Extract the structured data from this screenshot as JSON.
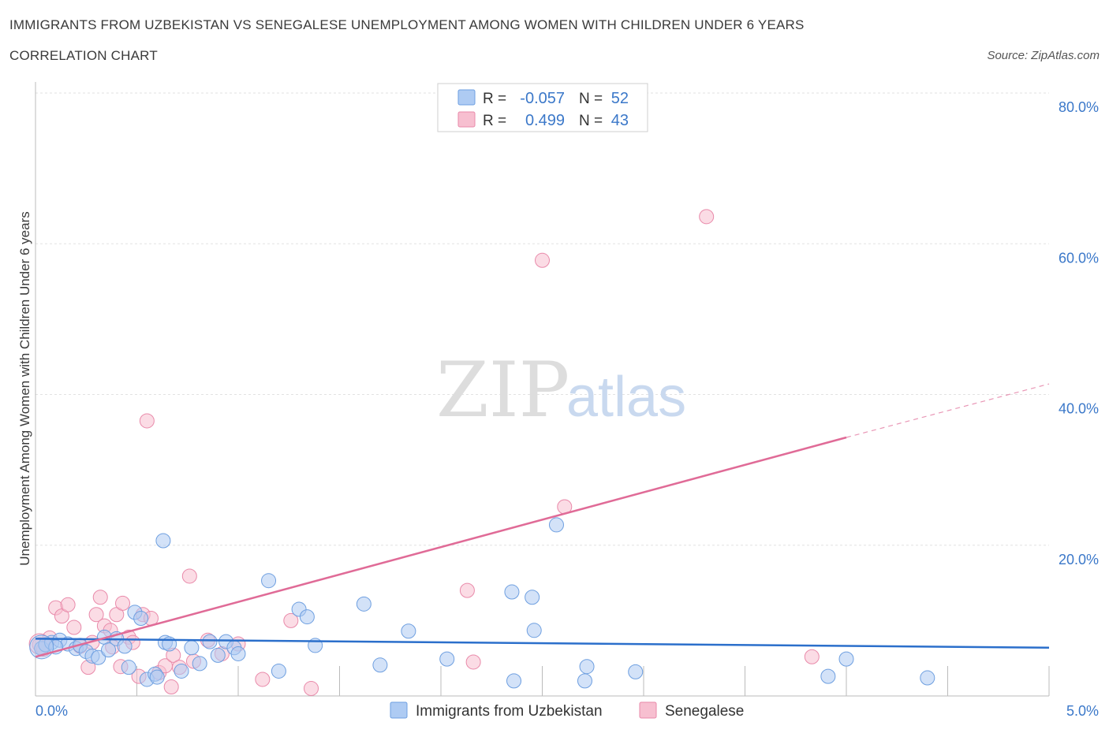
{
  "title": "IMMIGRANTS FROM UZBEKISTAN VS SENEGALESE UNEMPLOYMENT AMONG WOMEN WITH CHILDREN UNDER 6 YEARS",
  "subtitle": "CORRELATION CHART",
  "source": "Source: ZipAtlas.com",
  "watermark": {
    "zip": "ZIP",
    "atlas": "atlas"
  },
  "legend": {
    "r_label": "R =",
    "n_label": "N =",
    "rows": [
      {
        "r": "-0.057",
        "n": "52"
      },
      {
        "r": "0.499",
        "n": "43"
      }
    ]
  },
  "colors": {
    "blue_fill": "#aecbf3",
    "blue_stroke": "#6e9fe0",
    "blue_line": "#2b6fcb",
    "pink_fill": "#f7bfd0",
    "pink_stroke": "#e98aaa",
    "pink_line": "#e06b97",
    "tick_label": "#3b78c9"
  },
  "chart_data": {
    "type": "scatter",
    "title": "IMMIGRANTS FROM UZBEKISTAN VS SENEGALESE UNEMPLOYMENT AMONG WOMEN WITH CHILDREN UNDER 6 YEARS",
    "xlabel": "",
    "ylabel": "Unemployment Among Women with Children Under 6 years",
    "xlim": [
      0,
      5
    ],
    "ylim": [
      0,
      80
    ],
    "x_ticks": [
      "0.0%",
      "5.0%"
    ],
    "y_ticks": [
      {
        "value": 20,
        "label": "20.0%"
      },
      {
        "value": 40,
        "label": "40.0%"
      },
      {
        "value": 60,
        "label": "60.0%"
      },
      {
        "value": 80,
        "label": "80.0%"
      }
    ],
    "series": [
      {
        "name": "Immigrants from Uzbekistan",
        "color": "blue",
        "R": -0.057,
        "N": 52,
        "trend": {
          "x0": 0.0,
          "y0": 7.6,
          "x1": 5.0,
          "y1": 6.4
        },
        "points": [
          [
            0.03,
            6.3
          ],
          [
            0.05,
            6.8
          ],
          [
            0.08,
            7.1
          ],
          [
            0.12,
            7.4
          ],
          [
            0.16,
            6.9
          ],
          [
            0.2,
            6.3
          ],
          [
            0.22,
            6.7
          ],
          [
            0.25,
            5.9
          ],
          [
            0.28,
            5.3
          ],
          [
            0.31,
            5.1
          ],
          [
            0.34,
            7.8
          ],
          [
            0.36,
            6.1
          ],
          [
            0.4,
            7.6
          ],
          [
            0.44,
            6.6
          ],
          [
            0.46,
            3.8
          ],
          [
            0.49,
            11.1
          ],
          [
            0.52,
            10.3
          ],
          [
            0.55,
            2.2
          ],
          [
            0.59,
            2.9
          ],
          [
            0.63,
            20.6
          ],
          [
            0.64,
            7.1
          ],
          [
            0.66,
            6.9
          ],
          [
            0.72,
            3.3
          ],
          [
            0.77,
            6.4
          ],
          [
            0.81,
            4.3
          ],
          [
            0.86,
            7.2
          ],
          [
            0.9,
            5.4
          ],
          [
            0.94,
            7.2
          ],
          [
            0.98,
            6.4
          ],
          [
            1.0,
            5.6
          ],
          [
            1.15,
            15.3
          ],
          [
            1.2,
            3.3
          ],
          [
            1.3,
            11.5
          ],
          [
            1.34,
            10.5
          ],
          [
            1.38,
            6.7
          ],
          [
            1.62,
            12.2
          ],
          [
            1.7,
            4.1
          ],
          [
            1.84,
            8.6
          ],
          [
            2.03,
            4.9
          ],
          [
            2.35,
            13.8
          ],
          [
            2.36,
            2.0
          ],
          [
            2.45,
            13.1
          ],
          [
            2.46,
            8.7
          ],
          [
            2.57,
            22.7
          ],
          [
            2.71,
            2.0
          ],
          [
            2.72,
            3.9
          ],
          [
            2.96,
            3.2
          ],
          [
            3.91,
            2.6
          ],
          [
            4.0,
            4.9
          ],
          [
            4.4,
            2.4
          ],
          [
            0.6,
            2.5
          ],
          [
            0.1,
            6.5
          ]
        ]
      },
      {
        "name": "Senegalese",
        "color": "pink",
        "R": 0.499,
        "N": 43,
        "trend": {
          "x0": 0.0,
          "y0": 5.2,
          "x1": 4.0,
          "y1": 34.3
        },
        "trend_dashed": {
          "x0": 4.0,
          "y0": 34.3,
          "x1": 5.0,
          "y1": 41.4
        },
        "points": [
          [
            0.02,
            6.8
          ],
          [
            0.04,
            6.2
          ],
          [
            0.07,
            7.7
          ],
          [
            0.1,
            11.7
          ],
          [
            0.13,
            10.6
          ],
          [
            0.16,
            12.1
          ],
          [
            0.19,
            9.1
          ],
          [
            0.22,
            6.6
          ],
          [
            0.26,
            3.8
          ],
          [
            0.28,
            7.1
          ],
          [
            0.3,
            10.8
          ],
          [
            0.32,
            13.1
          ],
          [
            0.34,
            9.3
          ],
          [
            0.37,
            8.7
          ],
          [
            0.38,
            6.5
          ],
          [
            0.4,
            10.8
          ],
          [
            0.42,
            3.9
          ],
          [
            0.43,
            12.3
          ],
          [
            0.46,
            7.8
          ],
          [
            0.48,
            7.1
          ],
          [
            0.51,
            2.6
          ],
          [
            0.53,
            10.8
          ],
          [
            0.55,
            36.5
          ],
          [
            0.57,
            10.3
          ],
          [
            0.61,
            3.1
          ],
          [
            0.64,
            4.0
          ],
          [
            0.67,
            1.2
          ],
          [
            0.68,
            5.4
          ],
          [
            0.71,
            3.8
          ],
          [
            0.76,
            15.9
          ],
          [
            0.78,
            4.6
          ],
          [
            0.85,
            7.4
          ],
          [
            0.92,
            5.6
          ],
          [
            1.0,
            6.9
          ],
          [
            1.12,
            2.2
          ],
          [
            1.26,
            10.0
          ],
          [
            1.36,
            1.0
          ],
          [
            2.13,
            14.0
          ],
          [
            2.16,
            4.5
          ],
          [
            2.5,
            57.8
          ],
          [
            2.61,
            25.1
          ],
          [
            3.31,
            63.6
          ],
          [
            3.83,
            5.2
          ]
        ]
      }
    ]
  }
}
